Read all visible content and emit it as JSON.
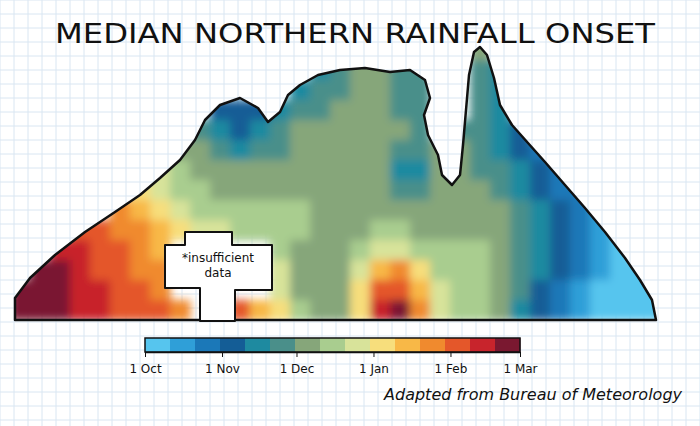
{
  "chart_data": {
    "type": "heatmap",
    "title": "MEDIAN NORTHERN RAINFALL ONSET",
    "annotation": [
      "*insufficient",
      "data"
    ],
    "source": "Adapted from Bureau of Meteorology",
    "cells": [
      [
        null,
        null,
        null,
        null,
        null,
        null,
        null,
        null,
        null,
        null,
        null,
        null,
        null,
        null,
        null,
        null,
        null,
        null,
        null,
        null,
        null,
        null,
        null,
        62,
        null,
        null,
        null,
        null,
        null,
        null,
        null,
        null,
        null
      ],
      [
        null,
        null,
        null,
        null,
        null,
        null,
        null,
        null,
        null,
        null,
        null,
        null,
        null,
        null,
        null,
        50,
        60,
        62,
        62,
        60,
        58,
        null,
        null,
        58,
        50,
        null,
        null,
        null,
        null,
        null,
        null,
        null,
        null
      ],
      [
        null,
        null,
        null,
        null,
        null,
        null,
        null,
        null,
        null,
        null,
        null,
        null,
        null,
        null,
        48,
        52,
        60,
        62,
        62,
        60,
        55,
        null,
        null,
        58,
        48,
        null,
        null,
        null,
        null,
        null,
        null,
        null,
        null
      ],
      [
        null,
        null,
        null,
        null,
        null,
        null,
        null,
        null,
        null,
        null,
        38,
        32,
        40,
        50,
        55,
        60,
        62,
        63,
        63,
        60,
        55,
        null,
        null,
        58,
        45,
        null,
        null,
        null,
        null,
        null,
        null,
        null,
        null
      ],
      [
        null,
        null,
        null,
        null,
        null,
        null,
        null,
        null,
        null,
        55,
        42,
        35,
        42,
        55,
        62,
        64,
        64,
        64,
        63,
        62,
        58,
        null,
        60,
        58,
        45,
        35,
        null,
        null,
        null,
        null,
        null,
        null,
        null
      ],
      [
        null,
        null,
        null,
        null,
        null,
        null,
        null,
        null,
        70,
        62,
        52,
        48,
        52,
        60,
        64,
        65,
        65,
        64,
        62,
        60,
        58,
        62,
        62,
        58,
        50,
        38,
        30,
        null,
        null,
        null,
        null,
        null,
        null
      ],
      [
        null,
        null,
        null,
        null,
        null,
        null,
        null,
        85,
        75,
        68,
        62,
        62,
        64,
        65,
        66,
        66,
        65,
        64,
        62,
        48,
        50,
        62,
        62,
        60,
        55,
        42,
        32,
        28,
        null,
        null,
        null,
        null,
        null
      ],
      [
        null,
        null,
        null,
        null,
        null,
        null,
        100,
        90,
        80,
        74,
        70,
        68,
        68,
        68,
        68,
        66,
        66,
        64,
        62,
        58,
        60,
        62,
        62,
        62,
        60,
        50,
        38,
        30,
        25,
        null,
        null,
        null,
        null
      ],
      [
        null,
        null,
        null,
        null,
        null,
        115,
        108,
        98,
        88,
        80,
        75,
        74,
        74,
        73,
        72,
        70,
        68,
        66,
        64,
        62,
        62,
        62,
        63,
        63,
        62,
        55,
        42,
        32,
        25,
        15,
        null,
        null,
        null
      ],
      [
        null,
        null,
        null,
        130,
        125,
        118,
        112,
        104,
        96,
        88,
        82,
        80,
        78,
        76,
        72,
        68,
        68,
        70,
        74,
        72,
        66,
        64,
        66,
        70,
        64,
        58,
        45,
        34,
        25,
        14,
        8,
        null,
        null
      ],
      [
        null,
        null,
        140,
        133,
        128,
        122,
        116,
        108,
        null,
        null,
        null,
        null,
        null,
        78,
        70,
        65,
        66,
        76,
        90,
        90,
        78,
        72,
        75,
        72,
        64,
        55,
        45,
        34,
        22,
        12,
        6,
        null,
        null
      ],
      [
        null,
        148,
        142,
        135,
        130,
        125,
        120,
        112,
        null,
        null,
        null,
        null,
        null,
        82,
        68,
        64,
        68,
        85,
        108,
        112,
        95,
        78,
        74,
        72,
        64,
        52,
        42,
        32,
        22,
        12,
        5,
        3,
        null
      ],
      [
        150,
        148,
        144,
        138,
        132,
        128,
        124,
        118,
        null,
        null,
        null,
        null,
        null,
        90,
        70,
        64,
        68,
        95,
        128,
        130,
        108,
        82,
        75,
        72,
        64,
        52,
        40,
        30,
        20,
        10,
        5,
        3,
        2
      ],
      [
        150,
        149,
        146,
        140,
        134,
        130,
        126,
        122,
        120,
        null,
        null,
        128,
        110,
        95,
        72,
        64,
        70,
        100,
        135,
        148,
        115,
        85,
        76,
        72,
        64,
        50,
        38,
        28,
        18,
        8,
        4,
        2,
        2
      ]
    ],
    "colorbar": {
      "range": [
        0,
        151
      ],
      "ticks": [
        {
          "value": 0,
          "label": "1 Oct"
        },
        {
          "value": 31,
          "label": "1 Nov"
        },
        {
          "value": 61,
          "label": "1 Dec"
        },
        {
          "value": 92,
          "label": "1 Jan"
        },
        {
          "value": 123,
          "label": "1 Feb"
        },
        {
          "value": 151,
          "label": "1 Mar"
        }
      ]
    }
  }
}
